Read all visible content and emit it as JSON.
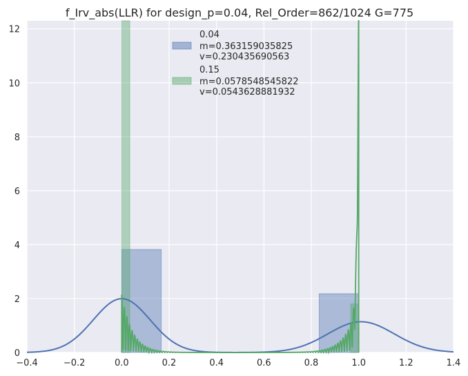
{
  "chart_data": {
    "type": "bar",
    "title": "f_Irv_abs(LLR) for design_p=0.04, Rel_Order=862/1024 G=775",
    "xlabel": "",
    "ylabel": "",
    "xlim": [
      -0.4,
      1.4
    ],
    "ylim": [
      0,
      12.3
    ],
    "grid": true,
    "legend_position": "top-center",
    "x_ticks": [
      "−0.4",
      "−0.2",
      "0.0",
      "0.2",
      "0.4",
      "0.6",
      "0.8",
      "1.0",
      "1.2",
      "1.4"
    ],
    "y_ticks": [
      "0",
      "2",
      "4",
      "6",
      "8",
      "10",
      "12"
    ],
    "series": [
      {
        "name": "0.04",
        "legend_lines": [
          "0.04",
          " m=0.363159035825",
          " v=0.230435690563"
        ],
        "color": "#4c72b0",
        "histogram": [
          {
            "x0": 0.0,
            "x1": 0.167,
            "value": 3.82
          },
          {
            "x0": 0.833,
            "x1": 1.0,
            "value": 2.18
          }
        ],
        "kde": {
          "components": [
            {
              "mean": 0.0,
              "sd": 0.12,
              "weight": 0.6
            },
            {
              "mean": 1.01,
              "sd": 0.14,
              "weight": 0.4
            }
          ]
        }
      },
      {
        "name": "0.15",
        "legend_lines": [
          "0.15",
          " m=0.0578548545822",
          " v=0.0543628881932"
        ],
        "color": "#55a868",
        "histogram": [
          {
            "x0": 0.0,
            "x1": 0.034,
            "value": 12.3
          },
          {
            "x0": 0.966,
            "x1": 1.0,
            "value": 1.8
          }
        ],
        "kde": {
          "edge_peaks": [
            {
              "at": 0.0,
              "peak": 2.15,
              "direction": 1
            },
            {
              "at": 1.0,
              "peak": 12.3,
              "direction": -1
            }
          ],
          "support": [
            0.0,
            1.0
          ]
        }
      }
    ]
  }
}
